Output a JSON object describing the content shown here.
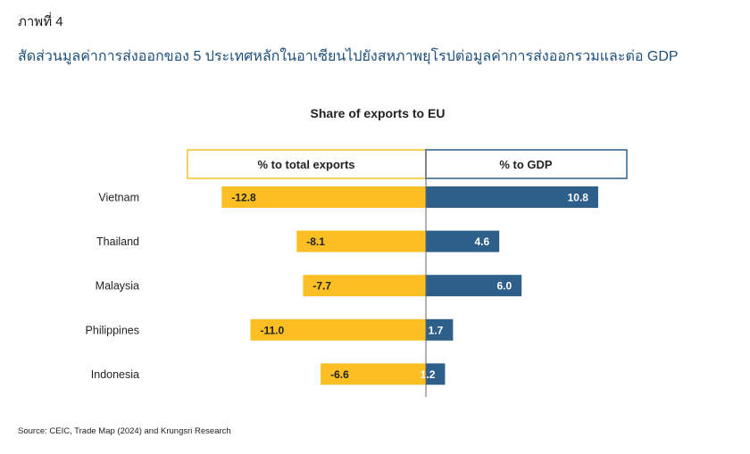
{
  "figure_label": "ภาพที่ 4",
  "figure_title": "สัดส่วนมูลค่าการส่งออกของ 5 ประเทศหลักในอาเซียนไปยังสหภาพยุโรปต่อมูลค่าการส่งออกรวมและต่อ GDP",
  "source": "Source: CEIC, Trade Map (2024) and Krungsri Research",
  "colors": {
    "exports": "#FBBF24",
    "gdp": "#2E5F8A",
    "title": "#1d4f7c"
  },
  "chart_data": {
    "type": "bar",
    "orientation": "horizontal-diverging",
    "title": "Share of exports to EU",
    "categories": [
      "Vietnam",
      "Thailand",
      "Malaysia",
      "Philippines",
      "Indonesia"
    ],
    "series": [
      {
        "name": "% to total exports",
        "values": [
          -12.8,
          -8.1,
          -7.7,
          -11.0,
          -6.6
        ],
        "labels": [
          "-12.8",
          "-8.1",
          "-7.7",
          "-11.0",
          "-6.6"
        ]
      },
      {
        "name": "% to GDP",
        "values": [
          10.8,
          4.6,
          6.0,
          1.7,
          1.2
        ],
        "labels": [
          "10.8",
          "4.6",
          "6.0",
          "1.7",
          "1.2"
        ]
      }
    ],
    "xlim": [
      -15,
      15
    ],
    "grid": false
  }
}
